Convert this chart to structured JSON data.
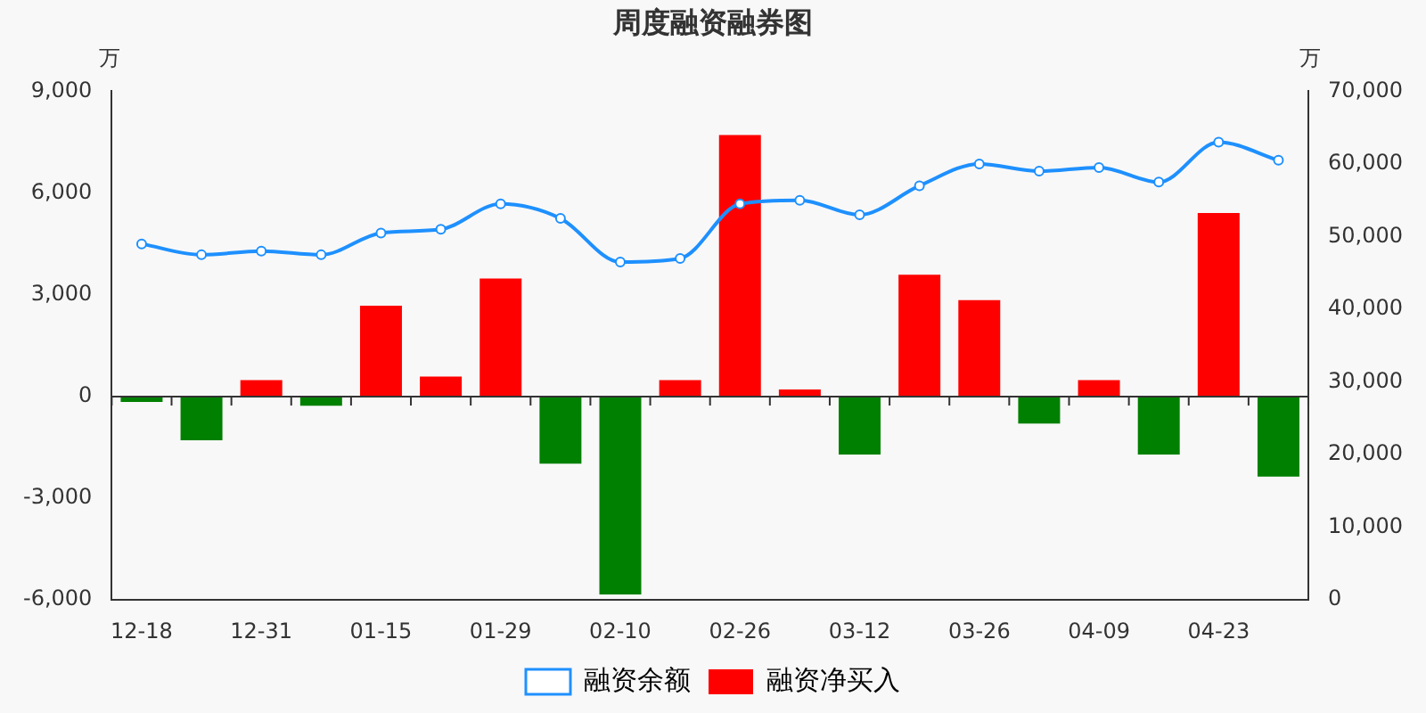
{
  "chart_data": {
    "type": "bar",
    "title": "周度融资融券图",
    "ylabel": "万",
    "y2label": "万",
    "categories": [
      "12-18",
      null,
      "12-31",
      null,
      "01-15",
      null,
      "01-29",
      null,
      "02-10",
      null,
      "02-26",
      null,
      "03-12",
      null,
      "03-26",
      null,
      "04-09",
      null,
      "04-23",
      null
    ],
    "series": [
      {
        "name": "融资余额",
        "type": "line",
        "axis": "y2",
        "color": "#1e90ff",
        "marker": "circle",
        "values": [
          49000,
          47500,
          48000,
          47500,
          50500,
          51000,
          54500,
          52500,
          46500,
          47000,
          54500,
          55000,
          53000,
          57000,
          60000,
          59000,
          59500,
          57500,
          63000,
          60500
        ]
      },
      {
        "name": "融资净买入",
        "color": "#ff0000",
        "colors": [
          "#008000",
          "#008000",
          "#ff0000",
          "#008000",
          "#ff0000",
          "#ff0000",
          "#ff0000",
          "#008000",
          "#008000",
          "#ff0000",
          "#ff0000",
          "#ff0000",
          "#008000",
          "#ff0000",
          "#ff0000",
          "#008000",
          "#ff0000",
          "#008000",
          "#ff0000",
          "#008000"
        ],
        "values": [
          -160,
          -1290,
          480,
          -270,
          2680,
          590,
          3480,
          -1980,
          -5840,
          480,
          7710,
          210,
          -1710,
          3590,
          2840,
          -800,
          480,
          -1710,
          5410,
          -2360
        ]
      }
    ],
    "ylim": [
      -6000,
      9000
    ],
    "yticks": [
      {
        "value": -6000,
        "label": "-6,000"
      },
      {
        "value": -3000,
        "label": "-3,000"
      },
      0,
      {
        "value": 3000,
        "label": "3,000"
      },
      {
        "value": 6000,
        "label": "6,000"
      },
      {
        "value": 9000,
        "label": "9,000"
      }
    ],
    "y2lim": [
      0,
      70000
    ],
    "y2ticks": [
      0,
      {
        "value": 10000,
        "label": "10,000"
      },
      {
        "value": 20000,
        "label": "20,000"
      },
      {
        "value": 30000,
        "label": "30,000"
      },
      {
        "value": 40000,
        "label": "40,000"
      },
      {
        "value": 50000,
        "label": "50,000"
      },
      {
        "value": 60000,
        "label": "60,000"
      },
      {
        "value": 70000,
        "label": "70,000"
      }
    ],
    "ref_lines": [
      {
        "axis": "y",
        "value": 0,
        "color": "#333333"
      }
    ],
    "grid": false,
    "legend": "bottom"
  }
}
